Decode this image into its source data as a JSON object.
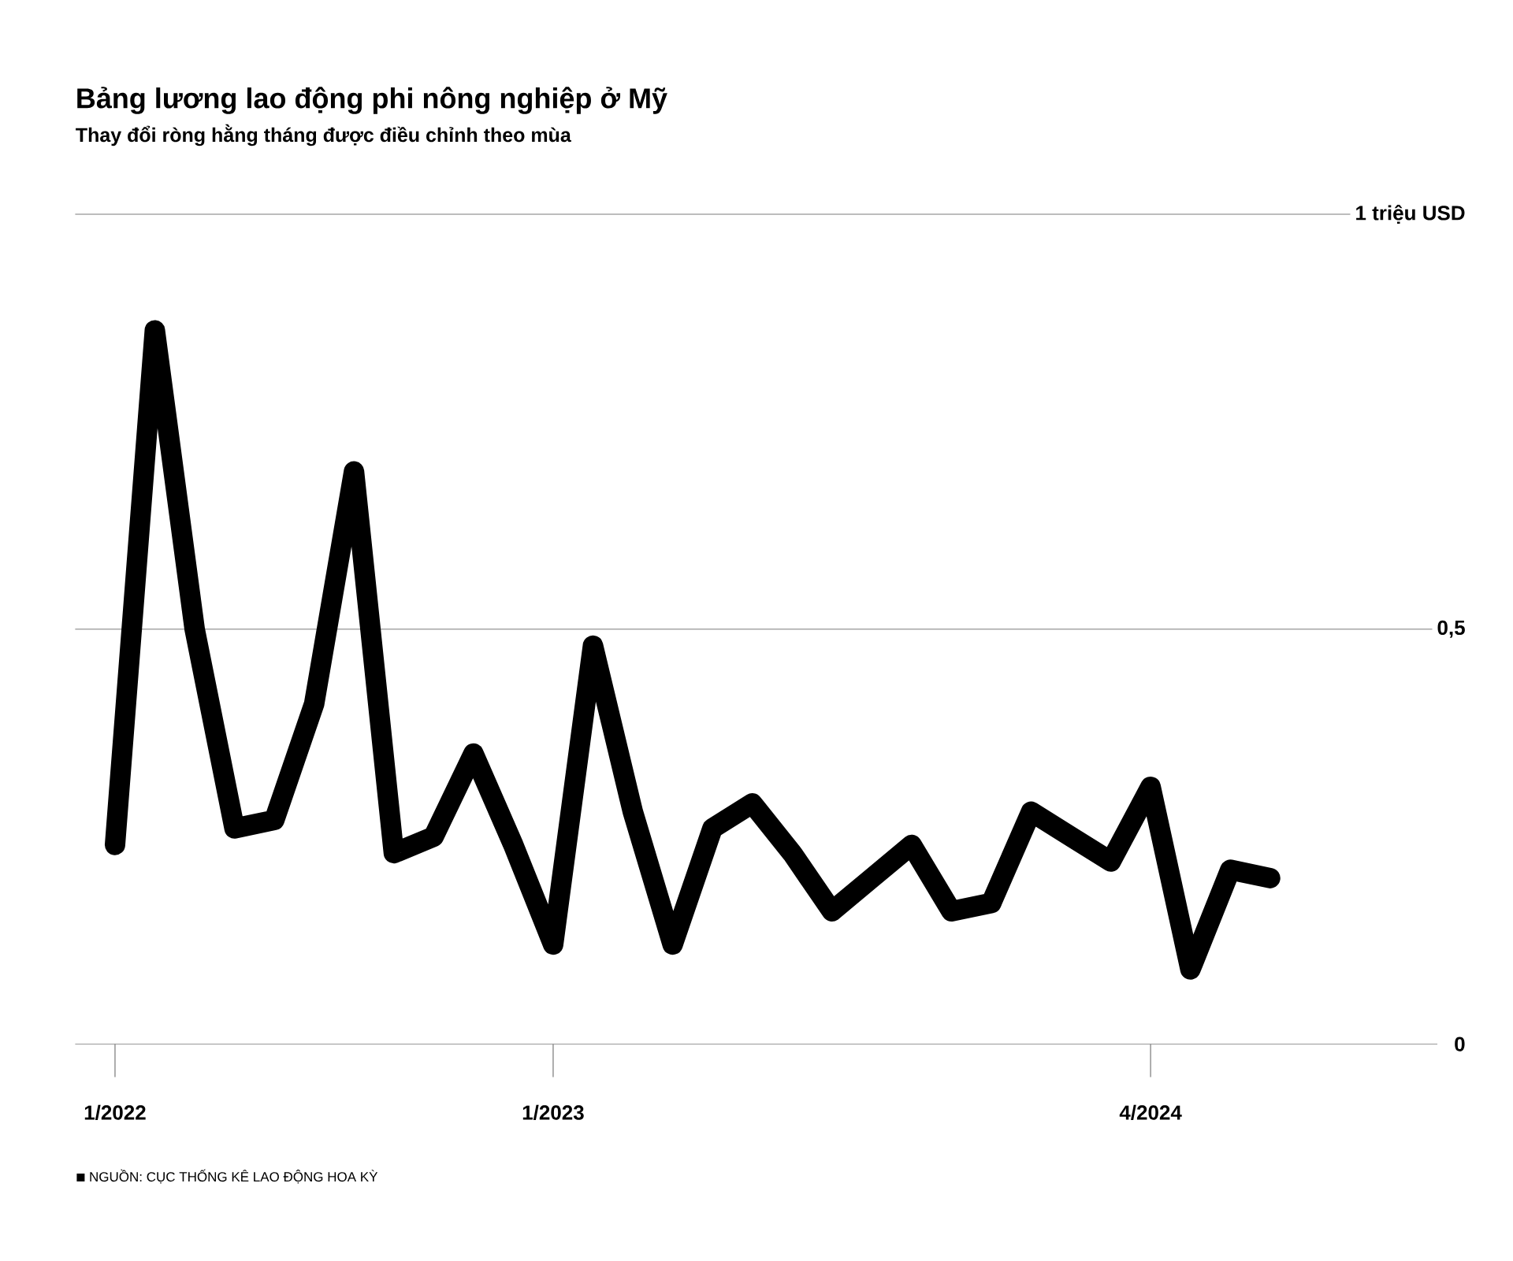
{
  "chart_data": {
    "type": "line",
    "title": "Bảng lương lao động phi nông nghiệp ở Mỹ",
    "subtitle": "Thay đổi ròng hằng tháng được điều chỉnh theo mùa",
    "annotations": [
      "NGUỒN: CỤC THỐNG KÊ LAO ĐỘNG HOA KỲ"
    ],
    "categories": [
      "1/2022",
      null,
      null,
      null,
      null,
      null,
      null,
      null,
      null,
      null,
      null,
      "1/2023",
      null,
      null,
      null,
      null,
      null,
      null,
      null,
      null,
      null,
      null,
      null,
      null,
      null,
      null,
      "4/2024",
      null,
      null,
      null
    ],
    "series": [
      {
        "color": "#000000",
        "values": [
          0.24,
          0.86,
          0.5,
          0.26,
          0.27,
          0.41,
          0.69,
          0.23,
          0.25,
          0.35,
          0.24,
          0.12,
          0.48,
          0.28,
          0.12,
          0.26,
          0.29,
          0.23,
          0.16,
          0.2,
          0.24,
          0.16,
          0.17,
          0.28,
          0.25,
          0.22,
          0.31,
          0.09,
          0.21,
          0.2
        ]
      }
    ],
    "ylim": [
      0,
      1
    ],
    "yticks": [
      0,
      {
        "value": 0.5,
        "label": "0,5"
      },
      {
        "value": 1,
        "label": "1 triệu USD"
      }
    ],
    "grid": "y",
    "line_style": "solid"
  }
}
